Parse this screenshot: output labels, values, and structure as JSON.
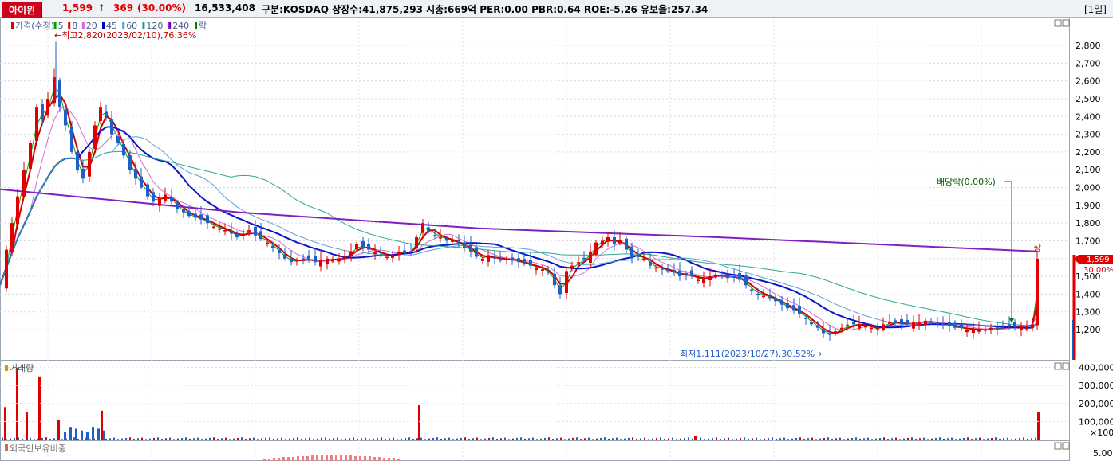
{
  "header": {
    "stock_name": "아이윈",
    "price": "1,599",
    "change_arrow": "↑",
    "change": "369",
    "change_pct": "(30.00%)",
    "volume": "16,533,408",
    "info": "구분:KOSDAQ 상장수:41,875,293 시총:669억 PER:0.00 PBR:0.64 ROE:-5.26 유보율:257.34",
    "period": "[1일]"
  },
  "price_panel": {
    "legend": [
      {
        "label": "가격(수정)",
        "color": "#e00000"
      },
      {
        "label": "5",
        "color": "#00a000"
      },
      {
        "label": "8",
        "color": "#e00000"
      },
      {
        "label": "20",
        "color": "#e060e0"
      },
      {
        "label": "45",
        "color": "#0000c0"
      },
      {
        "label": "60",
        "color": "#4aa0d0"
      },
      {
        "label": "120",
        "color": "#20a080"
      },
      {
        "label": "240",
        "color": "#8000c0"
      },
      {
        "label": "락",
        "color": "#008000"
      }
    ],
    "high_annotation": "←최고2,820(2023/02/10),76.36%",
    "low_annotation": "최저1,111(2023/10/27),30.52%→",
    "dividend_annotation": "배당락(0.00%)",
    "limit_up_mark": "상",
    "current_price_tag": "1,599",
    "current_pct_tag": "30.00%",
    "y_ticks": [
      "2,800",
      "2,700",
      "2,600",
      "2,500",
      "2,400",
      "2,300",
      "2,200",
      "2,100",
      "2,000",
      "1,900",
      "1,800",
      "1,700",
      "1,600",
      "1,500",
      "1,400",
      "1,300",
      "1,200"
    ]
  },
  "volume_panel": {
    "title": "거래량",
    "y_ticks": [
      "400,000",
      "300,000",
      "200,000",
      "100,000"
    ],
    "unit": "×100"
  },
  "foreign_panel": {
    "title": "외국인보유비중",
    "y_ticks": [
      "5.00"
    ]
  },
  "colors": {
    "up": "#e00000",
    "down": "#1e5fc8",
    "ma5": "#00a000",
    "ma8": "#d00000",
    "ma20": "#d070d0",
    "ma45": "#0a14c8",
    "ma60": "#5aa0d8",
    "ma120": "#30a890",
    "ma240": "#8020c0"
  },
  "chart_data": {
    "type": "candlestick",
    "ylim": [
      1111,
      2820
    ],
    "close_points": [
      [
        0,
        1450
      ],
      [
        8,
        1650
      ],
      [
        15,
        1800
      ],
      [
        22,
        1950
      ],
      [
        30,
        2100
      ],
      [
        38,
        2250
      ],
      [
        46,
        2450
      ],
      [
        53,
        2380
      ],
      [
        60,
        2500
      ],
      [
        68,
        2620
      ],
      [
        75,
        2450
      ],
      [
        82,
        2350
      ],
      [
        90,
        2200
      ],
      [
        97,
        2100
      ],
      [
        104,
        2050
      ],
      [
        112,
        2200
      ],
      [
        119,
        2350
      ],
      [
        126,
        2450
      ],
      [
        133,
        2400
      ],
      [
        140,
        2300
      ],
      [
        148,
        2250
      ],
      [
        155,
        2180
      ],
      [
        163,
        2100
      ],
      [
        170,
        2050
      ],
      [
        177,
        2000
      ],
      [
        185,
        1950
      ],
      [
        192,
        1920
      ],
      [
        200,
        1940
      ],
      [
        207,
        1960
      ],
      [
        215,
        1920
      ],
      [
        222,
        1880
      ],
      [
        230,
        1860
      ],
      [
        237,
        1840
      ],
      [
        245,
        1830
      ],
      [
        252,
        1820
      ],
      [
        260,
        1800
      ],
      [
        268,
        1780
      ],
      [
        275,
        1770
      ],
      [
        282,
        1760
      ],
      [
        290,
        1740
      ],
      [
        297,
        1720
      ],
      [
        305,
        1740
      ],
      [
        312,
        1760
      ],
      [
        320,
        1730
      ],
      [
        327,
        1710
      ],
      [
        335,
        1690
      ],
      [
        342,
        1660
      ],
      [
        350,
        1630
      ],
      [
        357,
        1600
      ],
      [
        365,
        1580
      ],
      [
        372,
        1590
      ],
      [
        380,
        1600
      ],
      [
        387,
        1590
      ],
      [
        395,
        1580
      ],
      [
        402,
        1590
      ],
      [
        410,
        1600
      ],
      [
        417,
        1590
      ],
      [
        425,
        1600
      ],
      [
        432,
        1610
      ],
      [
        440,
        1640
      ],
      [
        447,
        1680
      ],
      [
        455,
        1660
      ],
      [
        462,
        1650
      ],
      [
        470,
        1640
      ],
      [
        477,
        1620
      ],
      [
        485,
        1610
      ],
      [
        492,
        1620
      ],
      [
        500,
        1640
      ],
      [
        507,
        1630
      ],
      [
        515,
        1640
      ],
      [
        522,
        1720
      ],
      [
        530,
        1800
      ],
      [
        537,
        1750
      ],
      [
        545,
        1730
      ],
      [
        552,
        1720
      ],
      [
        560,
        1700
      ],
      [
        567,
        1700
      ],
      [
        575,
        1680
      ],
      [
        582,
        1660
      ],
      [
        590,
        1640
      ],
      [
        597,
        1610
      ],
      [
        605,
        1600
      ],
      [
        612,
        1620
      ],
      [
        620,
        1600
      ],
      [
        627,
        1590
      ],
      [
        635,
        1600
      ],
      [
        642,
        1590
      ],
      [
        650,
        1580
      ],
      [
        657,
        1570
      ],
      [
        665,
        1560
      ],
      [
        672,
        1550
      ],
      [
        680,
        1540
      ],
      [
        687,
        1520
      ],
      [
        695,
        1450
      ],
      [
        702,
        1400
      ],
      [
        710,
        1530
      ],
      [
        717,
        1560
      ],
      [
        725,
        1580
      ],
      [
        732,
        1600
      ],
      [
        740,
        1640
      ],
      [
        747,
        1690
      ],
      [
        755,
        1700
      ],
      [
        762,
        1720
      ],
      [
        770,
        1680
      ],
      [
        777,
        1700
      ],
      [
        785,
        1650
      ],
      [
        792,
        1600
      ],
      [
        800,
        1620
      ],
      [
        807,
        1600
      ],
      [
        815,
        1560
      ],
      [
        822,
        1550
      ],
      [
        830,
        1540
      ],
      [
        837,
        1530
      ],
      [
        845,
        1520
      ],
      [
        852,
        1500
      ],
      [
        860,
        1510
      ],
      [
        867,
        1500
      ],
      [
        875,
        1480
      ],
      [
        882,
        1490
      ],
      [
        890,
        1500
      ],
      [
        897,
        1510
      ],
      [
        905,
        1500
      ],
      [
        912,
        1490
      ],
      [
        920,
        1500
      ],
      [
        927,
        1480
      ],
      [
        935,
        1450
      ],
      [
        942,
        1420
      ],
      [
        950,
        1400
      ],
      [
        957,
        1390
      ],
      [
        965,
        1380
      ],
      [
        972,
        1360
      ],
      [
        980,
        1340
      ],
      [
        987,
        1320
      ],
      [
        995,
        1310
      ],
      [
        1002,
        1290
      ],
      [
        1010,
        1260
      ],
      [
        1017,
        1230
      ],
      [
        1025,
        1210
      ],
      [
        1032,
        1180
      ],
      [
        1040,
        1170
      ],
      [
        1047,
        1190
      ],
      [
        1055,
        1210
      ],
      [
        1062,
        1220
      ],
      [
        1070,
        1230
      ],
      [
        1077,
        1230
      ],
      [
        1085,
        1220
      ],
      [
        1092,
        1210
      ],
      [
        1100,
        1200
      ],
      [
        1107,
        1230
      ],
      [
        1115,
        1240
      ],
      [
        1122,
        1240
      ],
      [
        1130,
        1230
      ],
      [
        1137,
        1230
      ],
      [
        1145,
        1240
      ],
      [
        1152,
        1240
      ],
      [
        1160,
        1250
      ],
      [
        1167,
        1240
      ],
      [
        1175,
        1230
      ],
      [
        1182,
        1230
      ],
      [
        1190,
        1220
      ],
      [
        1197,
        1210
      ],
      [
        1205,
        1210
      ],
      [
        1212,
        1200
      ],
      [
        1220,
        1200
      ],
      [
        1227,
        1200
      ],
      [
        1235,
        1200
      ],
      [
        1242,
        1210
      ],
      [
        1250,
        1200
      ],
      [
        1257,
        1210
      ],
      [
        1265,
        1220
      ],
      [
        1272,
        1220
      ],
      [
        1280,
        1220
      ],
      [
        1287,
        1220
      ],
      [
        1294,
        1230
      ],
      [
        1300,
        1599
      ]
    ],
    "volume_spikes": [
      [
        5,
        180000
      ],
      [
        20,
        400000
      ],
      [
        32,
        150000
      ],
      [
        48,
        350000
      ],
      [
        72,
        110000
      ],
      [
        126,
        160000
      ],
      [
        524,
        190000
      ],
      [
        870,
        20000
      ],
      [
        1300,
        150000
      ]
    ]
  }
}
